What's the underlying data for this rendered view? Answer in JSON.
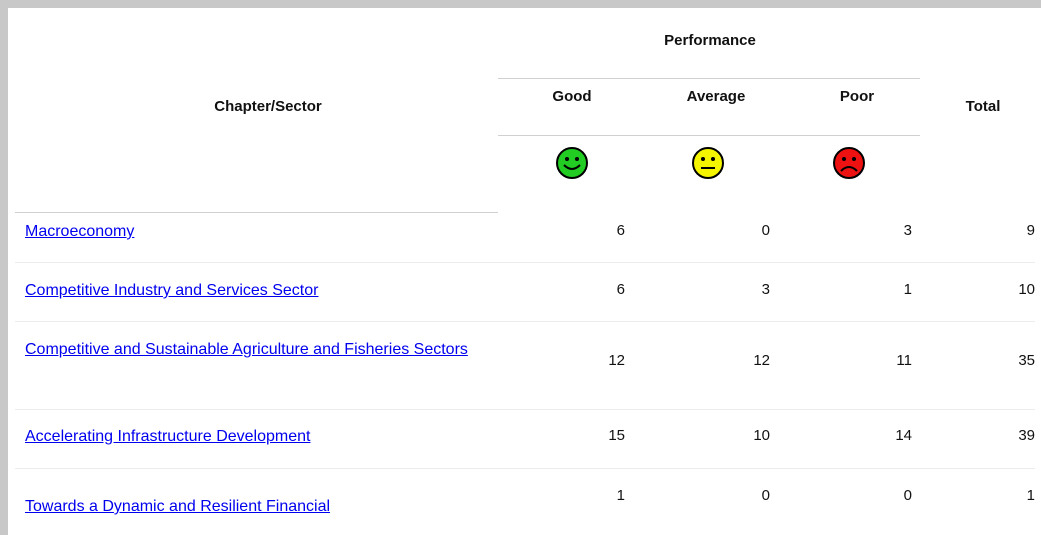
{
  "table": {
    "header": {
      "group": "Performance",
      "chapter": "Chapter/Sector",
      "good": "Good",
      "average": "Average",
      "poor": "Poor",
      "total": "Total"
    },
    "rows": [
      [
        "Macroeconomy",
        "6",
        "0",
        "3",
        "9"
      ],
      [
        "Competitive Industry and Services Sector",
        "6",
        "3",
        "1",
        "10"
      ],
      [
        "Competitive and Sustainable Agriculture and Fisheries Sectors",
        "12",
        "12",
        "11",
        "35"
      ],
      [
        "Accelerating Infrastructure Development",
        "15",
        "10",
        "14",
        "39"
      ],
      [
        "Towards a Dynamic and Resilient Financial",
        "1",
        "0",
        "0",
        "1"
      ]
    ]
  }
}
